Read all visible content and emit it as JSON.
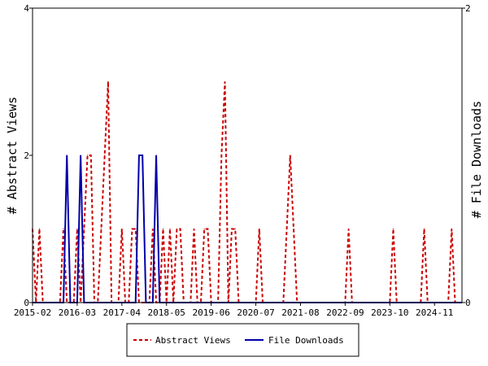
{
  "chart_data": {
    "type": "line",
    "title": "",
    "xlabel": "",
    "ylabel_left": "# Abstract Views",
    "ylabel_right": "# File Downloads",
    "x_range": [
      "2015-02",
      "2025-07"
    ],
    "x_tick_labels": [
      "2015-02",
      "2016-03",
      "2017-04",
      "2018-05",
      "2019-06",
      "2020-07",
      "2021-08",
      "2022-09",
      "2023-10",
      "2024-11"
    ],
    "y_left": {
      "range": [
        0,
        4
      ],
      "ticks": [
        0,
        2,
        4
      ]
    },
    "y_right": {
      "range": [
        0,
        2
      ],
      "ticks": [
        0,
        2
      ]
    },
    "grid": false,
    "legend_position": "bottom-center",
    "series": [
      {
        "name": "Abstract Views",
        "axis": "left",
        "style": "dashed",
        "color": "#cc0000",
        "points": [
          [
            "2015-02",
            1
          ],
          [
            "2015-03",
            0
          ],
          [
            "2015-04",
            1
          ],
          [
            "2015-05",
            0
          ],
          [
            "2015-06",
            0
          ],
          [
            "2015-07",
            0
          ],
          [
            "2015-08",
            0
          ],
          [
            "2015-09",
            0
          ],
          [
            "2015-10",
            0
          ],
          [
            "2015-11",
            1
          ],
          [
            "2015-12",
            0
          ],
          [
            "2016-01",
            0
          ],
          [
            "2016-02",
            0
          ],
          [
            "2016-03",
            1
          ],
          [
            "2016-04",
            0
          ],
          [
            "2016-05",
            1
          ],
          [
            "2016-06",
            2
          ],
          [
            "2016-07",
            2
          ],
          [
            "2016-08",
            0
          ],
          [
            "2016-09",
            0
          ],
          [
            "2016-10",
            1
          ],
          [
            "2016-11",
            2
          ],
          [
            "2016-12",
            3
          ],
          [
            "2017-01",
            0
          ],
          [
            "2017-02",
            0
          ],
          [
            "2017-03",
            0
          ],
          [
            "2017-04",
            1
          ],
          [
            "2017-05",
            0
          ],
          [
            "2017-06",
            0
          ],
          [
            "2017-07",
            1
          ],
          [
            "2017-08",
            1
          ],
          [
            "2017-09",
            0
          ],
          [
            "2017-10",
            0
          ],
          [
            "2017-11",
            0
          ],
          [
            "2017-12",
            0
          ],
          [
            "2018-01",
            1
          ],
          [
            "2018-02",
            0
          ],
          [
            "2018-03",
            0
          ],
          [
            "2018-04",
            1
          ],
          [
            "2018-05",
            0
          ],
          [
            "2018-06",
            1
          ],
          [
            "2018-07",
            0
          ],
          [
            "2018-08",
            1
          ],
          [
            "2018-09",
            1
          ],
          [
            "2018-10",
            0
          ],
          [
            "2018-11",
            0
          ],
          [
            "2018-12",
            0
          ],
          [
            "2019-01",
            1
          ],
          [
            "2019-02",
            0
          ],
          [
            "2019-03",
            0
          ],
          [
            "2019-04",
            1
          ],
          [
            "2019-05",
            1
          ],
          [
            "2019-06",
            0
          ],
          [
            "2019-07",
            0
          ],
          [
            "2019-08",
            0
          ],
          [
            "2019-09",
            2
          ],
          [
            "2019-10",
            3
          ],
          [
            "2019-11",
            0
          ],
          [
            "2019-12",
            1
          ],
          [
            "2020-01",
            1
          ],
          [
            "2020-02",
            0
          ],
          [
            "2020-03",
            0
          ],
          [
            "2020-04",
            0
          ],
          [
            "2020-05",
            0
          ],
          [
            "2020-06",
            0
          ],
          [
            "2020-07",
            0
          ],
          [
            "2020-08",
            1
          ],
          [
            "2020-09",
            0
          ],
          [
            "2020-10",
            0
          ],
          [
            "2020-11",
            0
          ],
          [
            "2020-12",
            0
          ],
          [
            "2021-01",
            0
          ],
          [
            "2021-02",
            0
          ],
          [
            "2021-03",
            0
          ],
          [
            "2021-04",
            1
          ],
          [
            "2021-05",
            2
          ],
          [
            "2021-06",
            1
          ],
          [
            "2021-07",
            0
          ],
          [
            "2021-08",
            0
          ],
          [
            "2021-09",
            0
          ],
          [
            "2021-10",
            0
          ],
          [
            "2021-11",
            0
          ],
          [
            "2021-12",
            0
          ],
          [
            "2022-01",
            0
          ],
          [
            "2022-02",
            0
          ],
          [
            "2022-03",
            0
          ],
          [
            "2022-04",
            0
          ],
          [
            "2022-05",
            0
          ],
          [
            "2022-06",
            0
          ],
          [
            "2022-07",
            0
          ],
          [
            "2022-08",
            0
          ],
          [
            "2022-09",
            0
          ],
          [
            "2022-10",
            1
          ],
          [
            "2022-11",
            0
          ],
          [
            "2022-12",
            0
          ],
          [
            "2023-01",
            0
          ],
          [
            "2023-02",
            0
          ],
          [
            "2023-03",
            0
          ],
          [
            "2023-04",
            0
          ],
          [
            "2023-05",
            0
          ],
          [
            "2023-06",
            0
          ],
          [
            "2023-07",
            0
          ],
          [
            "2023-08",
            0
          ],
          [
            "2023-09",
            0
          ],
          [
            "2023-10",
            0
          ],
          [
            "2023-11",
            1
          ],
          [
            "2023-12",
            0
          ],
          [
            "2024-01",
            0
          ],
          [
            "2024-02",
            0
          ],
          [
            "2024-03",
            0
          ],
          [
            "2024-04",
            0
          ],
          [
            "2024-05",
            0
          ],
          [
            "2024-06",
            0
          ],
          [
            "2024-07",
            0
          ],
          [
            "2024-08",
            1
          ],
          [
            "2024-09",
            0
          ],
          [
            "2024-10",
            0
          ],
          [
            "2024-11",
            0
          ],
          [
            "2024-12",
            0
          ],
          [
            "2025-01",
            0
          ],
          [
            "2025-02",
            0
          ],
          [
            "2025-03",
            0
          ],
          [
            "2025-04",
            1
          ],
          [
            "2025-05",
            0
          ],
          [
            "2025-06",
            0
          ],
          [
            "2025-07",
            0
          ]
        ]
      },
      {
        "name": "File Downloads",
        "axis": "right",
        "style": "solid",
        "color": "#0000aa",
        "points": [
          [
            "2015-02",
            0
          ],
          [
            "2015-03",
            0
          ],
          [
            "2015-04",
            0
          ],
          [
            "2015-05",
            0
          ],
          [
            "2015-06",
            0
          ],
          [
            "2015-07",
            0
          ],
          [
            "2015-08",
            0
          ],
          [
            "2015-09",
            0
          ],
          [
            "2015-10",
            0
          ],
          [
            "2015-11",
            0
          ],
          [
            "2015-12",
            1
          ],
          [
            "2016-01",
            0
          ],
          [
            "2016-02",
            0
          ],
          [
            "2016-03",
            0
          ],
          [
            "2016-04",
            1
          ],
          [
            "2016-05",
            0
          ],
          [
            "2016-06",
            0
          ],
          [
            "2016-07",
            0
          ],
          [
            "2016-08",
            0
          ],
          [
            "2016-09",
            0
          ],
          [
            "2016-10",
            0
          ],
          [
            "2016-11",
            0
          ],
          [
            "2016-12",
            0
          ],
          [
            "2017-01",
            0
          ],
          [
            "2017-02",
            0
          ],
          [
            "2017-03",
            0
          ],
          [
            "2017-04",
            0
          ],
          [
            "2017-05",
            0
          ],
          [
            "2017-06",
            0
          ],
          [
            "2017-07",
            0
          ],
          [
            "2017-08",
            0
          ],
          [
            "2017-09",
            1
          ],
          [
            "2017-10",
            1
          ],
          [
            "2017-11",
            0
          ],
          [
            "2017-12",
            0
          ],
          [
            "2018-01",
            0
          ],
          [
            "2018-02",
            1
          ],
          [
            "2018-03",
            0
          ],
          [
            "2018-04",
            0
          ],
          [
            "2018-05",
            0
          ],
          [
            "2018-06",
            0
          ],
          [
            "2018-07",
            0
          ],
          [
            "2018-08",
            0
          ],
          [
            "2018-09",
            0
          ],
          [
            "2018-10",
            0
          ],
          [
            "2018-11",
            0
          ],
          [
            "2018-12",
            0
          ],
          [
            "2019-01",
            0
          ],
          [
            "2019-02",
            0
          ],
          [
            "2019-03",
            0
          ],
          [
            "2019-04",
            0
          ],
          [
            "2019-05",
            0
          ],
          [
            "2019-06",
            0
          ],
          [
            "2019-07",
            0
          ],
          [
            "2019-08",
            0
          ],
          [
            "2019-09",
            0
          ],
          [
            "2019-10",
            0
          ],
          [
            "2019-11",
            0
          ],
          [
            "2019-12",
            0
          ],
          [
            "2020-01",
            0
          ],
          [
            "2020-02",
            0
          ],
          [
            "2020-03",
            0
          ],
          [
            "2020-04",
            0
          ],
          [
            "2020-05",
            0
          ],
          [
            "2020-06",
            0
          ],
          [
            "2020-07",
            0
          ],
          [
            "2020-08",
            0
          ],
          [
            "2020-09",
            0
          ],
          [
            "2020-10",
            0
          ],
          [
            "2020-11",
            0
          ],
          [
            "2020-12",
            0
          ],
          [
            "2021-01",
            0
          ],
          [
            "2021-02",
            0
          ],
          [
            "2021-03",
            0
          ],
          [
            "2021-04",
            0
          ],
          [
            "2021-05",
            0
          ],
          [
            "2021-06",
            0
          ],
          [
            "2021-07",
            0
          ],
          [
            "2021-08",
            0
          ],
          [
            "2021-09",
            0
          ],
          [
            "2021-10",
            0
          ],
          [
            "2021-11",
            0
          ],
          [
            "2021-12",
            0
          ],
          [
            "2022-01",
            0
          ],
          [
            "2022-02",
            0
          ],
          [
            "2022-03",
            0
          ],
          [
            "2022-04",
            0
          ],
          [
            "2022-05",
            0
          ],
          [
            "2022-06",
            0
          ],
          [
            "2022-07",
            0
          ],
          [
            "2022-08",
            0
          ],
          [
            "2022-09",
            0
          ],
          [
            "2022-10",
            0
          ],
          [
            "2022-11",
            0
          ],
          [
            "2022-12",
            0
          ],
          [
            "2023-01",
            0
          ],
          [
            "2023-02",
            0
          ],
          [
            "2023-03",
            0
          ],
          [
            "2023-04",
            0
          ],
          [
            "2023-05",
            0
          ],
          [
            "2023-06",
            0
          ],
          [
            "2023-07",
            0
          ],
          [
            "2023-08",
            0
          ],
          [
            "2023-09",
            0
          ],
          [
            "2023-10",
            0
          ],
          [
            "2023-11",
            0
          ],
          [
            "2023-12",
            0
          ],
          [
            "2024-01",
            0
          ],
          [
            "2024-02",
            0
          ],
          [
            "2024-03",
            0
          ],
          [
            "2024-04",
            0
          ],
          [
            "2024-05",
            0
          ],
          [
            "2024-06",
            0
          ],
          [
            "2024-07",
            0
          ],
          [
            "2024-08",
            0
          ],
          [
            "2024-09",
            0
          ],
          [
            "2024-10",
            0
          ],
          [
            "2024-11",
            0
          ],
          [
            "2024-12",
            0
          ],
          [
            "2025-01",
            0
          ],
          [
            "2025-02",
            0
          ],
          [
            "2025-03",
            0
          ],
          [
            "2025-04",
            0
          ],
          [
            "2025-05",
            0
          ],
          [
            "2025-06",
            0
          ],
          [
            "2025-07",
            0
          ]
        ]
      }
    ]
  }
}
